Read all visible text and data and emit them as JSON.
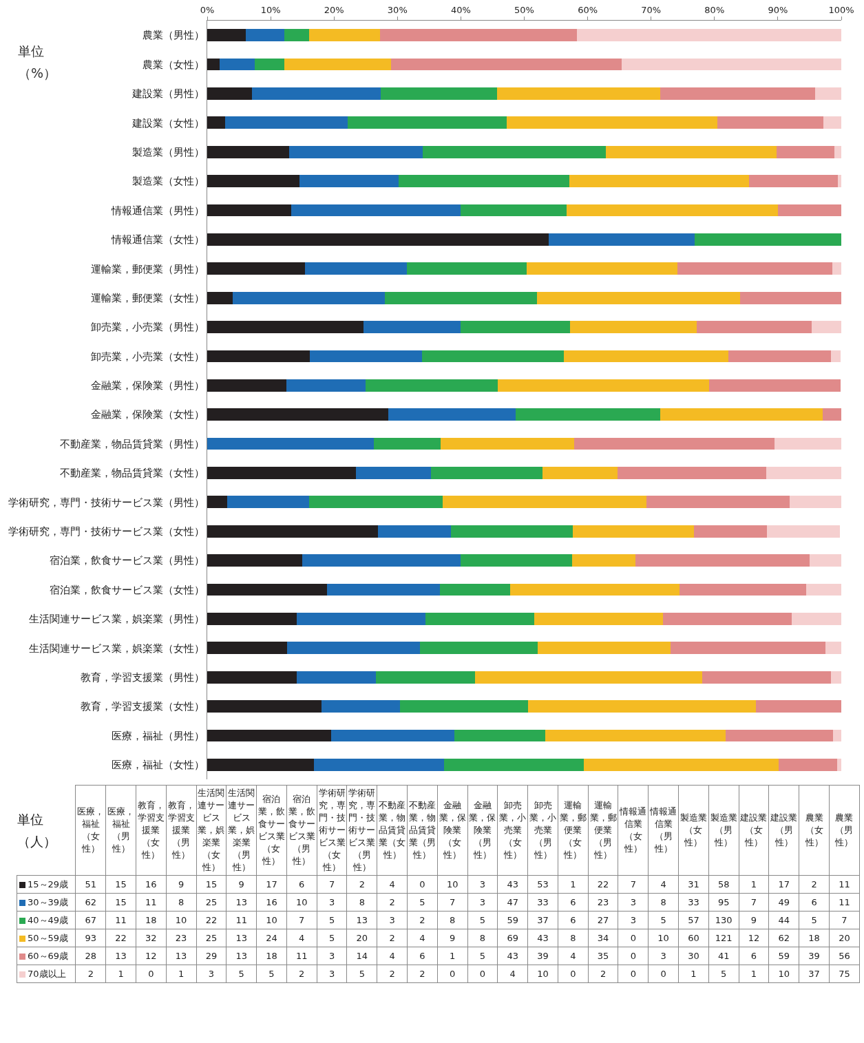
{
  "chart_data": [
    {
      "type": "bar",
      "orientation": "horizontal",
      "stacked": true,
      "categories": [
        "農業（男性）",
        "農業（女性）",
        "建設業（男性）",
        "建設業（女性）",
        "製造業（男性）",
        "製造業（女性）",
        "情報通信業（男性）",
        "情報通信業（女性）",
        "運輸業，郵便業（男性）",
        "運輸業，郵便業（女性）",
        "卸売業，小売業（男性）",
        "卸売業，小売業（女性）",
        "金融業，保険業（男性）",
        "金融業，保険業（女性）",
        "不動産業，物品賃貸業（男性）",
        "不動産業，物品賃貸業（女性）",
        "学術研究，専門・技術サービス業（男性）",
        "学術研究，専門・技術サービス業（女性）",
        "宿泊業，飲食サービス業（男性）",
        "宿泊業，飲食サービス業（女性）",
        "生活関連サービス業，娯楽業（男性）",
        "生活関連サービス業，娯楽業（女性）",
        "教育，学習支援業（男性）",
        "教育，学習支援業（女性）",
        "医療，福祉（男性）",
        "医療，福祉（女性）"
      ],
      "series": [
        {
          "color": "#231f20",
          "values": [
            6.1,
            1.9,
            7.1,
            2.8,
            12.9,
            14.6,
            13.3,
            53.8,
            15.4,
            4,
            24.7,
            16.2,
            12.5,
            28.6,
            0,
            23.5,
            3.2,
            26.9,
            15,
            18.9,
            14.1,
            12.6,
            14.1,
            18.0,
            19.5,
            16.8
          ]
        },
        {
          "color": "#1f6db5",
          "values": [
            6.1,
            5.6,
            20.3,
            19.4,
            21.1,
            15.6,
            26.7,
            23.1,
            16.1,
            24,
            15.3,
            17.7,
            12.5,
            20.0,
            26.3,
            11.8,
            12.9,
            11.5,
            25,
            17.8,
            20.3,
            21.0,
            12.5,
            12.4,
            19.5,
            20.5
          ]
        },
        {
          "color": "#2aa952",
          "values": [
            3.9,
            4.7,
            18.3,
            25.0,
            28.9,
            26.9,
            16.7,
            23.1,
            18.9,
            24,
            17.2,
            22.3,
            20.8,
            22.8,
            10.5,
            17.6,
            21.0,
            19.2,
            17.5,
            11.1,
            17.2,
            18.5,
            15.6,
            20.2,
            14.3,
            22.1
          ]
        },
        {
          "color": "#f4bb23",
          "values": [
            11.1,
            16.8,
            25.7,
            33.3,
            26.9,
            28.3,
            33.3,
            0,
            23.8,
            32,
            20.0,
            26.0,
            33.3,
            25.7,
            21.1,
            11.8,
            32.2,
            19.2,
            10,
            26.7,
            20.3,
            21.0,
            35.9,
            35.9,
            28.5,
            30.7
          ]
        },
        {
          "color": "#e08a8a",
          "values": [
            31.1,
            36.4,
            24.5,
            16.7,
            9.1,
            14.1,
            10.0,
            0,
            24.4,
            16,
            18.1,
            16.2,
            20.8,
            2.9,
            31.6,
            23.5,
            22.6,
            11.5,
            27.5,
            20.0,
            20.3,
            24.4,
            20.3,
            13.5,
            16.9,
            9.2
          ]
        },
        {
          "color": "#f5cfcf",
          "values": [
            41.7,
            34.6,
            4.1,
            2.8,
            1.1,
            0.5,
            0,
            0,
            1.4,
            0,
            4.7,
            1.5,
            0,
            0,
            10.5,
            11.8,
            8.1,
            11.5,
            5,
            5.5,
            7.8,
            2.5,
            1.6,
            0,
            1.3,
            0.7
          ]
        }
      ],
      "xlim": [
        0,
        100
      ],
      "xticks": [
        {
          "value": 0,
          "label": "0%"
        },
        {
          "value": 10,
          "label": "10%"
        },
        {
          "value": 20,
          "label": "20%"
        },
        {
          "value": 30,
          "label": "30%"
        },
        {
          "value": 40,
          "label": "40%"
        },
        {
          "value": 50,
          "label": "50%"
        },
        {
          "value": 60,
          "label": "60%"
        },
        {
          "value": 70,
          "label": "70%"
        },
        {
          "value": 80,
          "label": "80%"
        },
        {
          "value": 90,
          "label": "90%"
        },
        {
          "value": 100,
          "label": "100%"
        }
      ],
      "annotations": [
        "単位（%）"
      ]
    },
    {
      "type": "other",
      "data_labels": true,
      "categories": [
        "医療，福祉（女性）",
        "医療，福祉（男性）",
        "教育，学習支援業（女性）",
        "教育，学習支援業（男性）",
        "生活関連サービス業，娯楽業（女性）",
        "生活関連サービス業，娯楽業（男性）",
        "宿泊業，飲食サービス業（女性）",
        "宿泊業，飲食サービス業（男性）",
        "学術研究，専門・技術サービス業（女性）",
        "学術研究，専門・技術サービス業（男性）",
        "不動産業，物品賃貸業（女性）",
        "不動産業，物品賃貸業（男性）",
        "金融業，保険業（女性）",
        "金融業，保険業（男性）",
        "卸売業，小売業（女性）",
        "卸売業，小売業（男性）",
        "運輸業，郵便業（女性）",
        "運輸業，郵便業（男性）",
        "情報通信業（女性）",
        "情報通信業（男性）",
        "製造業（女性）",
        "製造業（男性）",
        "建設業（女性）",
        "建設業（男性）",
        "農業（女性）",
        "農業（男性）"
      ],
      "series": [
        {
          "name": "15～29歳",
          "color": "#231f20",
          "values": [
            51,
            15,
            16,
            9,
            15,
            9,
            17,
            6,
            7,
            2,
            4,
            0,
            10,
            3,
            43,
            53,
            1,
            22,
            7,
            4,
            31,
            58,
            1,
            17,
            2,
            11
          ]
        },
        {
          "name": "30～39歳",
          "color": "#1f6db5",
          "values": [
            62,
            15,
            11,
            8,
            25,
            13,
            16,
            10,
            3,
            8,
            2,
            5,
            7,
            3,
            47,
            33,
            6,
            23,
            3,
            8,
            33,
            95,
            7,
            49,
            6,
            11
          ]
        },
        {
          "name": "40～49歳",
          "color": "#2aa952",
          "values": [
            67,
            11,
            18,
            10,
            22,
            11,
            10,
            7,
            5,
            13,
            3,
            2,
            8,
            5,
            59,
            37,
            6,
            27,
            3,
            5,
            57,
            130,
            9,
            44,
            5,
            7
          ]
        },
        {
          "name": "50～59歳",
          "color": "#f4bb23",
          "values": [
            93,
            22,
            32,
            23,
            25,
            13,
            24,
            4,
            5,
            20,
            2,
            4,
            9,
            8,
            69,
            43,
            8,
            34,
            0,
            10,
            60,
            121,
            12,
            62,
            18,
            20
          ]
        },
        {
          "name": "60～69歳",
          "color": "#e08a8a",
          "values": [
            28,
            13,
            12,
            13,
            29,
            13,
            18,
            11,
            3,
            14,
            4,
            6,
            1,
            5,
            43,
            39,
            4,
            35,
            0,
            3,
            30,
            41,
            6,
            59,
            39,
            56
          ]
        },
        {
          "name": "70歳以上",
          "color": "#f5cfcf",
          "values": [
            2,
            1,
            0,
            1,
            3,
            5,
            5,
            2,
            3,
            5,
            2,
            2,
            0,
            0,
            4,
            10,
            0,
            2,
            0,
            0,
            1,
            5,
            1,
            10,
            37,
            75
          ]
        }
      ],
      "annotations": [
        "単位（人）"
      ]
    }
  ]
}
